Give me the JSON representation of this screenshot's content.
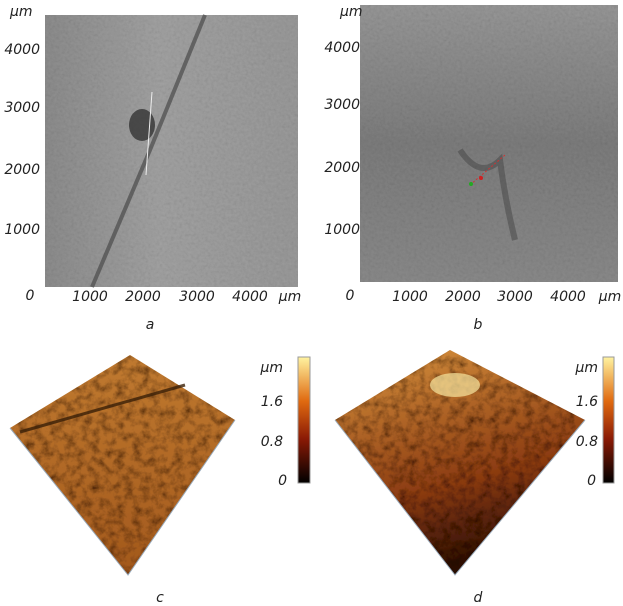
{
  "panels": [
    {
      "y_unit": "µm",
      "y_ticks": [
        "4000",
        "3000",
        "2000",
        "1000"
      ],
      "origin": "0",
      "x_ticks": [
        "1000",
        "2000",
        "3000",
        "4000"
      ],
      "x_unit": "µm",
      "caption": "a"
    },
    {
      "y_unit": "µm",
      "y_ticks": [
        "4000",
        "3000",
        "2000",
        "1000"
      ],
      "origin": "0",
      "x_ticks": [
        "1000",
        "2000",
        "3000",
        "4000"
      ],
      "x_unit": "µm",
      "caption": "b"
    },
    {
      "colorbar_unit": "µm",
      "colorbar_ticks": [
        "1.6",
        "0.8",
        "0"
      ],
      "caption": "c"
    },
    {
      "colorbar_unit": "µm",
      "colorbar_ticks": [
        "1.6",
        "0.8",
        "0"
      ],
      "caption": "d"
    }
  ]
}
